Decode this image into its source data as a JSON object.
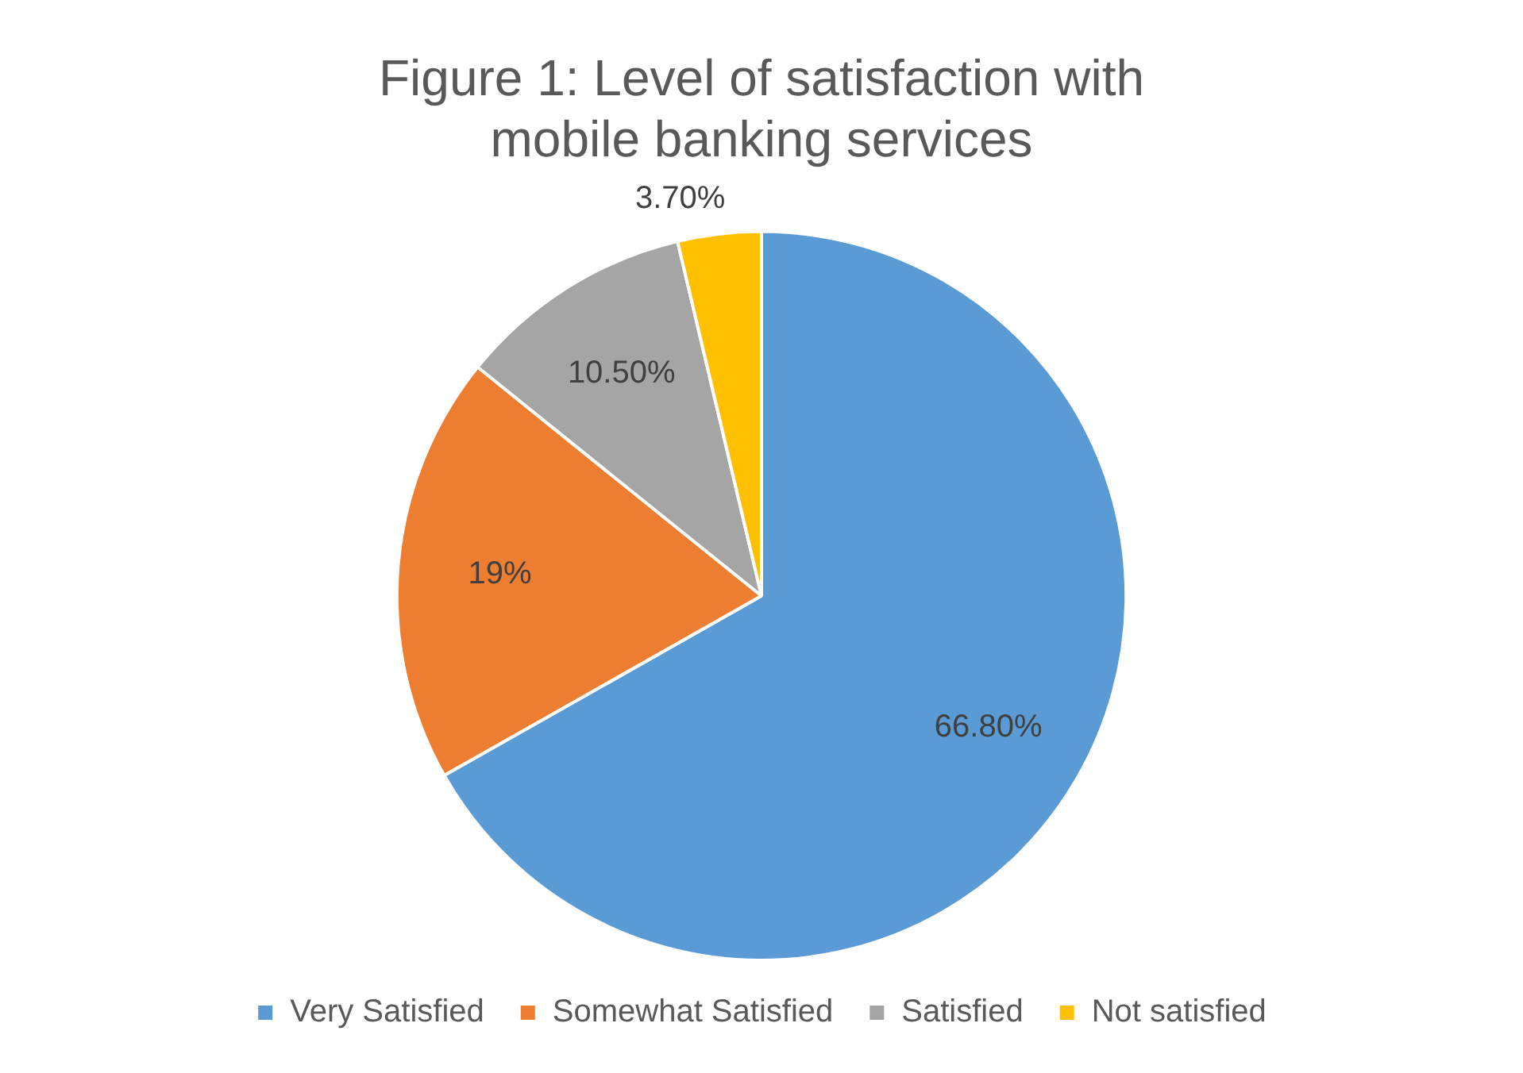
{
  "chart_data": {
    "type": "pie",
    "title": "Figure 1: Level of satisfaction with mobile banking services",
    "categories": [
      "Very Satisfied",
      "Somewhat Satisfied",
      "Satisfied",
      "Not satisfied"
    ],
    "values": [
      66.8,
      19,
      10.5,
      3.7
    ],
    "colors": [
      "#5b9bd5",
      "#ed7d31",
      "#a5a5a5",
      "#ffc000"
    ],
    "value_labels": [
      "66.80%",
      "19%",
      "10.50%",
      "3.70%"
    ],
    "legend": "bottom"
  }
}
